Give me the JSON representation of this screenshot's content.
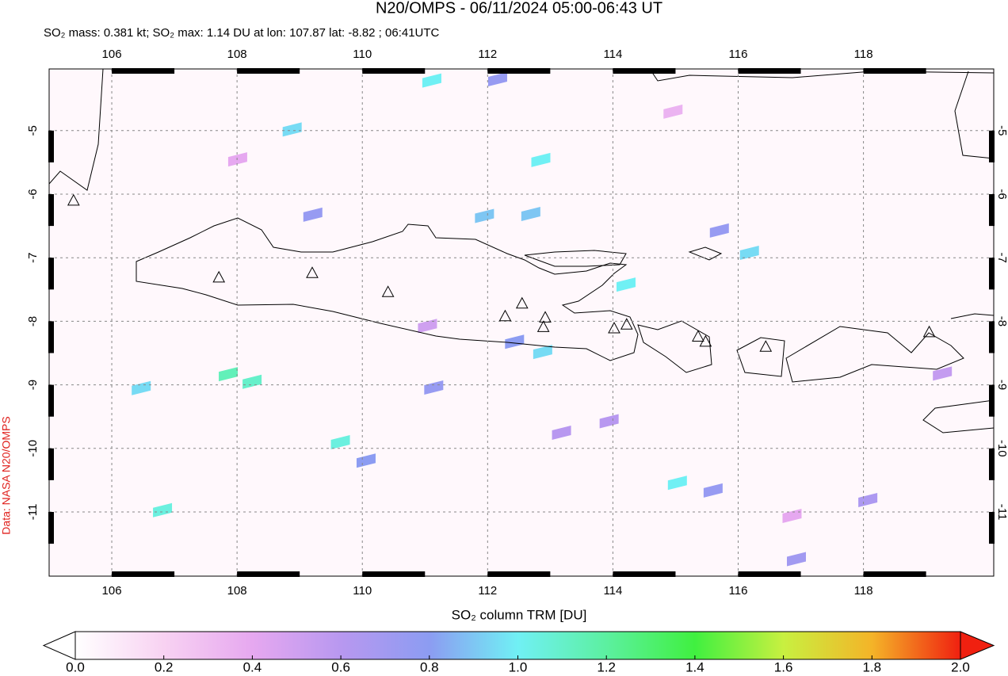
{
  "chart_data": {
    "type": "map",
    "title": "N20/OMPS - 06/11/2024 05:00-06:43 UT",
    "subtitle": "SO₂ mass: 0.381 kt; SO₂ max: 1.14 DU at lon: 107.87 lat: -8.82 ; 06:41UTC",
    "credit": "Data: NASA N20/OMPS",
    "colorbar_label": "SO₂ column TRM [DU]",
    "xlim": [
      105,
      120.08
    ],
    "ylim": [
      -12.01,
      -4.03
    ],
    "xticks": [
      106,
      108,
      110,
      112,
      114,
      116,
      118
    ],
    "yticks": [
      -5,
      -6,
      -7,
      -8,
      -9,
      -10,
      -11
    ],
    "grid": true,
    "clim": [
      0,
      2
    ],
    "cticks": [
      {
        "value": 0,
        "label": "0.0"
      },
      {
        "value": 0.2,
        "label": "0.2"
      },
      {
        "value": 0.4,
        "label": "0.4"
      },
      {
        "value": 0.6,
        "label": "0.6"
      },
      {
        "value": 0.8,
        "label": "0.8"
      },
      {
        "value": 1,
        "label": "1.0"
      },
      {
        "value": 1.2,
        "label": "1.2"
      },
      {
        "value": 1.4,
        "label": "1.4"
      },
      {
        "value": 1.6,
        "label": "1.6"
      },
      {
        "value": 1.8,
        "label": "1.8"
      },
      {
        "value": 2,
        "label": "2.0"
      }
    ],
    "colormap": [
      "#ffffff",
      "#f8d2f2",
      "#e6a8f0",
      "#b898f0",
      "#8c9cf2",
      "#70f0f4",
      "#5cf0a0",
      "#40f040",
      "#c8f040",
      "#f4b428",
      "#f02010"
    ],
    "volcanoes": {
      "lon": [
        105.39,
        107.71,
        109.2,
        110.41,
        112.28,
        112.55,
        112.92,
        112.89,
        114.02,
        114.22,
        115.36,
        115.48,
        116.44,
        119.05
      ],
      "lat": [
        -6.11,
        -7.32,
        -7.25,
        -7.55,
        -7.93,
        -7.73,
        -7.95,
        -8.1,
        -8.12,
        -8.06,
        -8.25,
        -8.33,
        -8.41,
        -8.18
      ]
    },
    "pixels": {
      "lon": [
        111.11,
        108.88,
        112.85,
        111.95,
        112.69,
        114.21,
        115.03,
        116.18,
        109.65,
        106.81,
        112.88,
        107.86,
        108.24,
        106.47,
        112.16,
        115.7,
        109.21,
        110.06,
        112.43,
        111.14,
        115.6,
        116.93,
        118.07,
        113.94,
        113.18,
        119.26,
        111.04,
        108.01,
        114.96,
        116.86
      ],
      "lat": [
        -4.2,
        -4.97,
        -5.45,
        -6.33,
        -6.3,
        -7.41,
        -10.53,
        -6.91,
        -9.89,
        -10.96,
        -8.47,
        -8.82,
        -8.94,
        -9.04,
        -4.18,
        -6.56,
        -6.31,
        -10.18,
        -8.31,
        -9.03,
        -10.65,
        -11.73,
        -10.8,
        -9.56,
        -9.74,
        -8.81,
        -8.06,
        -5.44,
        -4.69,
        -11.05
      ],
      "values": [
        1.0,
        0.95,
        1.0,
        0.9,
        0.9,
        1.0,
        1.0,
        0.95,
        1.05,
        1.05,
        0.95,
        1.14,
        1.1,
        0.95,
        0.75,
        0.75,
        0.75,
        0.8,
        0.8,
        0.75,
        0.75,
        0.7,
        0.65,
        0.6,
        0.6,
        0.55,
        0.5,
        0.4,
        0.35,
        0.4
      ]
    }
  }
}
